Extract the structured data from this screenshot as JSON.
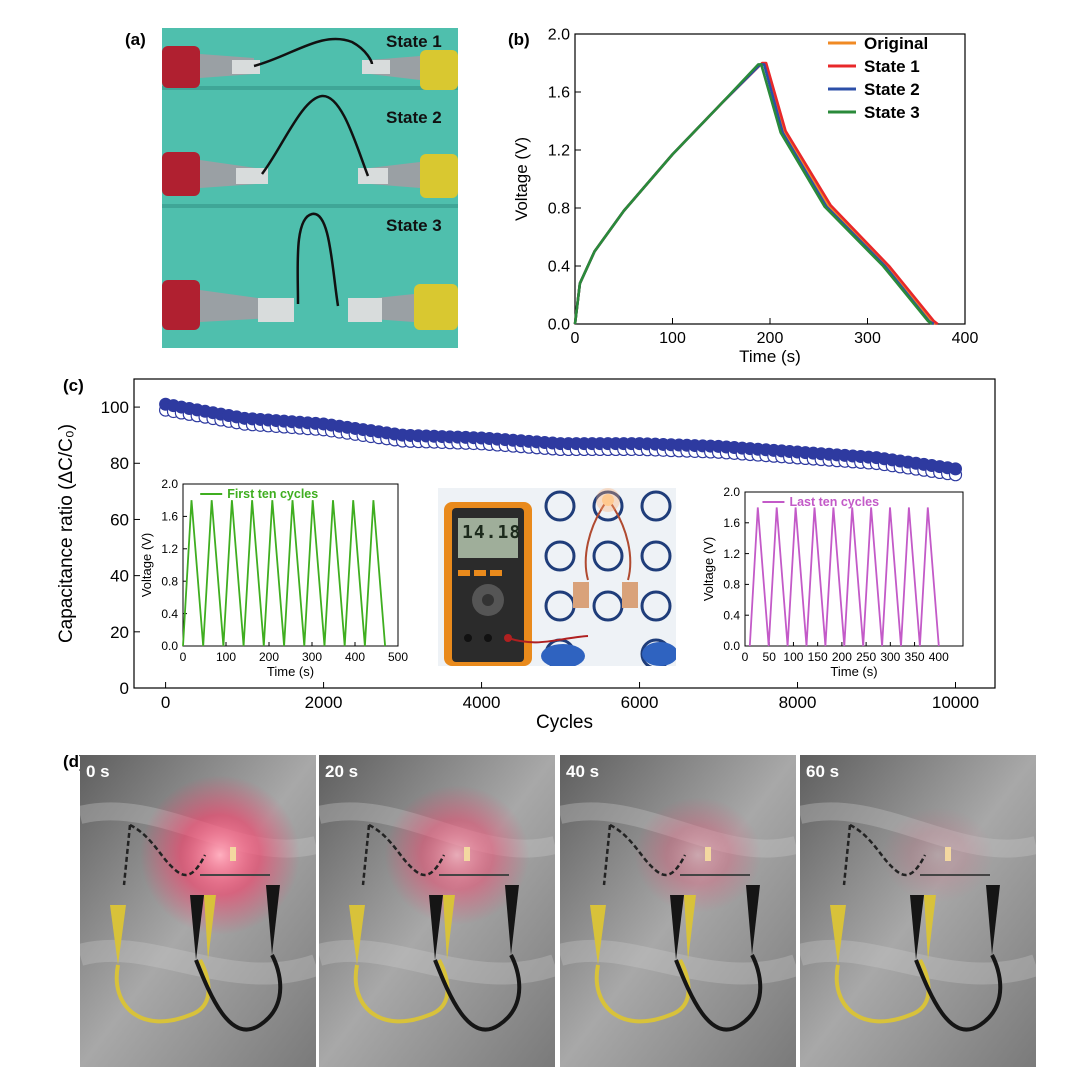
{
  "panels": {
    "a": {
      "label": "(a)",
      "states": [
        "State 1",
        "State 2",
        "State 3"
      ]
    },
    "b": {
      "label": "(b)"
    },
    "c": {
      "label": "(c)",
      "multimeter_reading": "14.18"
    },
    "d": {
      "label": "(d)",
      "times": [
        "0 s",
        "20 s",
        "40 s",
        "60 s"
      ]
    }
  },
  "colors": {
    "original": "#f08a24",
    "state1": "#e8282a",
    "state2": "#2c4fa8",
    "state3": "#2a8a3a",
    "cycle_marker": "#2e3aa0",
    "first_ten": "#3fae20",
    "last_ten": "#c35ac8"
  },
  "chart_data": [
    {
      "id": "b",
      "type": "line",
      "xlabel": "Time (s)",
      "ylabel": "Voltage (V)",
      "xlim": [
        0,
        400
      ],
      "ylim": [
        0,
        2.0
      ],
      "xticks": [
        "0",
        "100",
        "200",
        "300",
        "400"
      ],
      "yticks": [
        "0.0",
        "0.4",
        "0.8",
        "1.2",
        "1.6",
        "2.0"
      ],
      "legend": "top-right",
      "series": [
        {
          "name": "Original",
          "x": [
            0,
            5,
            20,
            50,
            100,
            150,
            190,
            195,
            215,
            260,
            320,
            365,
            370
          ],
          "y": [
            0,
            0.28,
            0.5,
            0.78,
            1.17,
            1.52,
            1.79,
            1.79,
            1.33,
            0.82,
            0.4,
            0.02,
            0
          ]
        },
        {
          "name": "State 1",
          "x": [
            0,
            5,
            20,
            50,
            100,
            150,
            192,
            196,
            216,
            262,
            322,
            368,
            372
          ],
          "y": [
            0,
            0.28,
            0.5,
            0.78,
            1.17,
            1.52,
            1.8,
            1.8,
            1.33,
            0.82,
            0.4,
            0.02,
            0
          ]
        },
        {
          "name": "State 2",
          "x": [
            0,
            5,
            20,
            50,
            100,
            150,
            190,
            194,
            213,
            258,
            318,
            363,
            368
          ],
          "y": [
            0,
            0.28,
            0.5,
            0.78,
            1.17,
            1.52,
            1.79,
            1.79,
            1.32,
            0.81,
            0.4,
            0.02,
            0
          ]
        },
        {
          "name": "State 3",
          "x": [
            0,
            5,
            20,
            50,
            100,
            150,
            188,
            191,
            211,
            256,
            316,
            362,
            366
          ],
          "y": [
            0,
            0.28,
            0.5,
            0.78,
            1.17,
            1.52,
            1.79,
            1.79,
            1.32,
            0.81,
            0.4,
            0.02,
            0
          ]
        }
      ]
    },
    {
      "id": "c",
      "type": "scatter",
      "xlabel": "Cycles",
      "ylabel": "Capacitance ratio (ΔC/C₀)",
      "xlim": [
        -400,
        10500
      ],
      "ylim": [
        0,
        110
      ],
      "xticks": [
        "0",
        "2000",
        "4000",
        "6000",
        "8000",
        "10000"
      ],
      "yticks": [
        "0",
        "20",
        "40",
        "60",
        "80",
        "100"
      ],
      "series": [
        {
          "name": "",
          "x_start": 0,
          "x_end": 10000,
          "x_step": 100,
          "trend": [
            [
              0,
              100
            ],
            [
              1000,
              95
            ],
            [
              2000,
              93
            ],
            [
              3000,
              89
            ],
            [
              4000,
              88
            ],
            [
              5000,
              86
            ],
            [
              6000,
              86
            ],
            [
              7000,
              85
            ],
            [
              8000,
              83
            ],
            [
              9000,
              81
            ],
            [
              9500,
              79
            ],
            [
              10000,
              77
            ]
          ]
        }
      ]
    },
    {
      "id": "c-inset-first",
      "type": "line",
      "xlabel": "Time (s)",
      "ylabel": "Voltage (V)",
      "xlim": [
        0,
        500
      ],
      "ylim": [
        0,
        2.0
      ],
      "xticks": [
        "0",
        "100",
        "200",
        "300",
        "400",
        "500"
      ],
      "yticks": [
        "0.0",
        "0.4",
        "0.8",
        "1.2",
        "1.6",
        "2.0"
      ],
      "legend": "top",
      "series": [
        {
          "name": "First ten cycles",
          "cycles": 10,
          "period": 47,
          "start": 0,
          "vmax": 1.8
        }
      ]
    },
    {
      "id": "c-inset-last",
      "type": "line",
      "xlabel": "Time (s)",
      "ylabel": "Voltage (V)",
      "xlim": [
        0,
        450
      ],
      "ylim": [
        0,
        2.0
      ],
      "xticks": [
        "0",
        "50",
        "100",
        "150",
        "200",
        "250",
        "300",
        "350",
        "400"
      ],
      "yticks": [
        "0.0",
        "0.4",
        "0.8",
        "1.2",
        "1.6",
        "2.0"
      ],
      "legend": "top",
      "series": [
        {
          "name": "Last ten cycles",
          "cycles": 10,
          "period": 39,
          "start": 10,
          "vmax": 1.8
        }
      ]
    }
  ]
}
